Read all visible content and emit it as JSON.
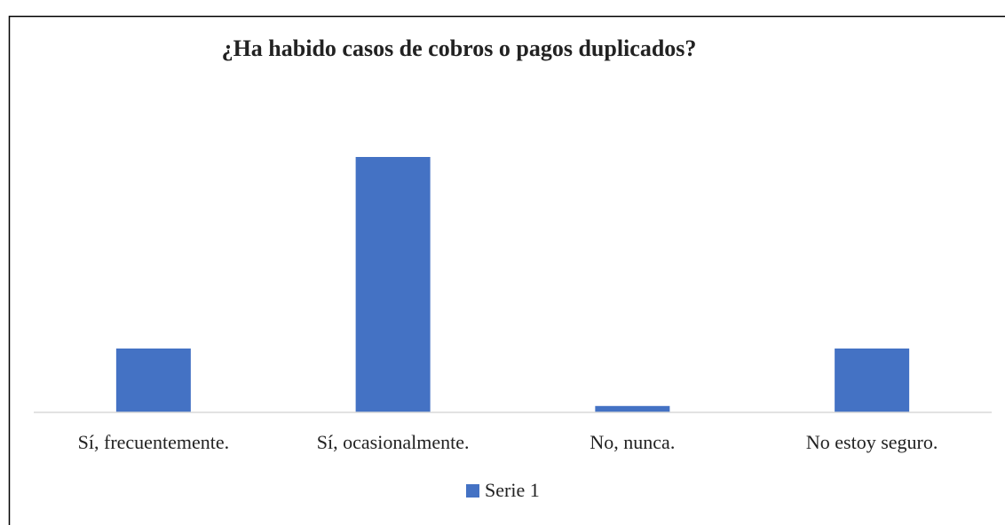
{
  "chart_data": {
    "type": "bar",
    "title": "¿Ha habido casos de cobros o pagos duplicados?",
    "categories": [
      "Sí, frecuentemente.",
      "Sí, ocasionalmente.",
      "No, nunca.",
      "No estoy seguro."
    ],
    "series": [
      {
        "name": "Serie 1",
        "color": "#4472c4",
        "values": [
          20,
          80,
          2,
          20
        ]
      }
    ],
    "ylim": [
      0,
      100
    ],
    "legend": "bottom"
  }
}
